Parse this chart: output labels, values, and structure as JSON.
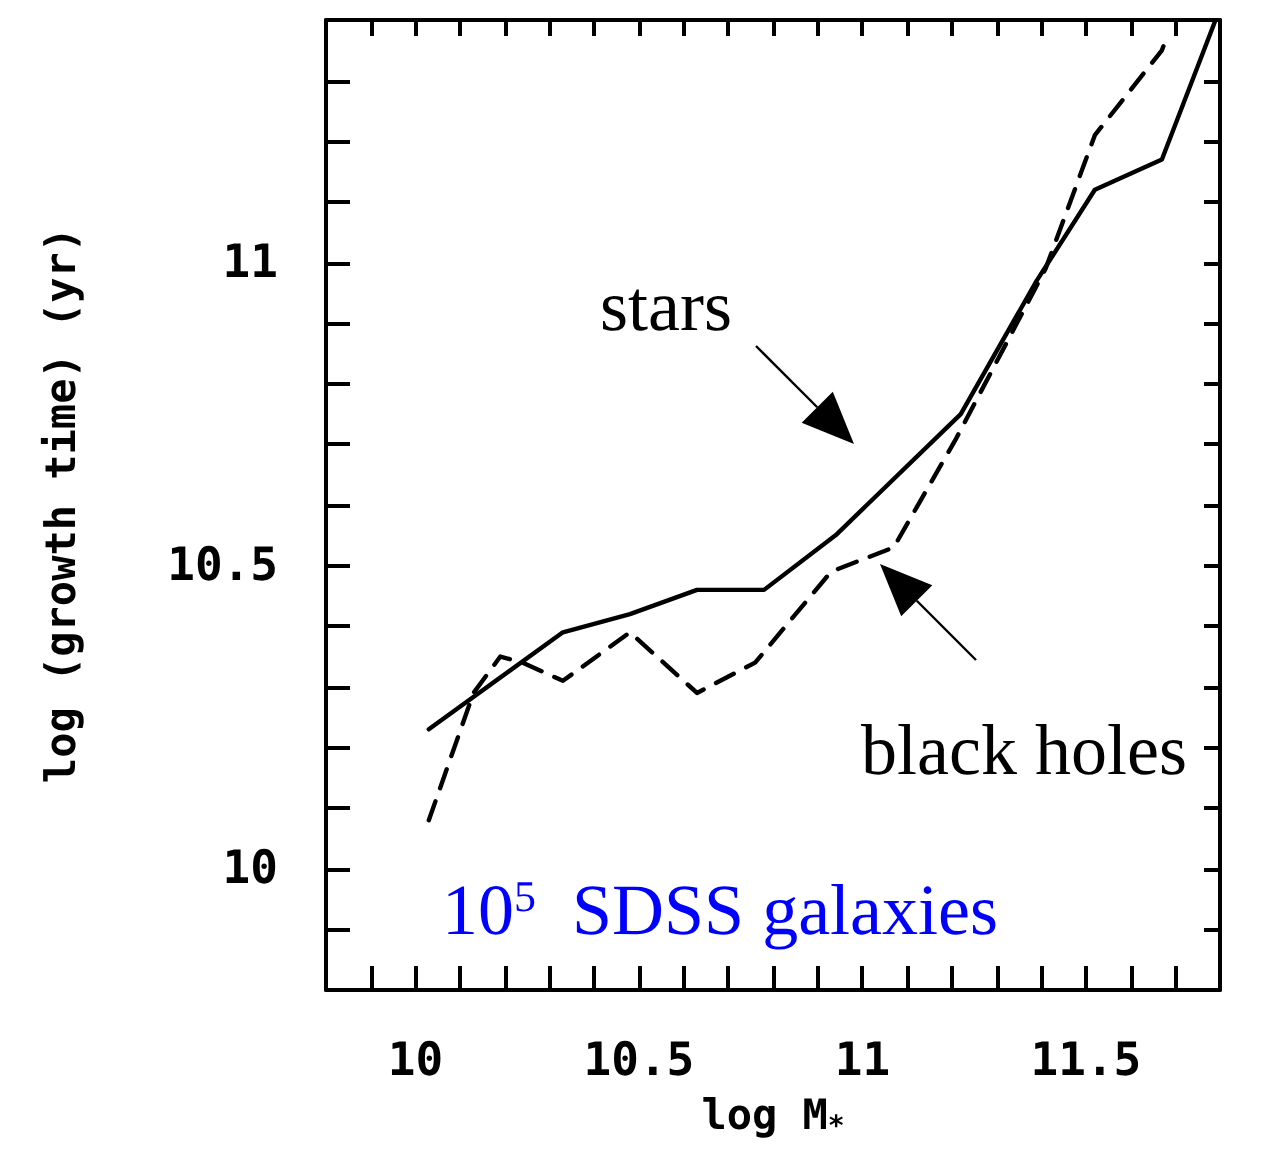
{
  "chart_data": {
    "type": "line",
    "xlabel": "log M$_{*}$",
    "ylabel": "log (growth time) (yr)",
    "xlim": [
      9.8,
      11.8
    ],
    "ylim": [
      9.8,
      11.4
    ],
    "xticks": [
      {
        "value": 9.9,
        "label": null
      },
      10,
      {
        "value": 10.1,
        "label": null
      },
      {
        "value": 10.2,
        "label": null
      },
      {
        "value": 10.3,
        "label": null
      },
      {
        "value": 10.4,
        "label": null
      },
      10.5,
      {
        "value": 10.6,
        "label": null
      },
      {
        "value": 10.7,
        "label": null
      },
      {
        "value": 10.8,
        "label": null
      },
      {
        "value": 10.9,
        "label": null
      },
      11,
      {
        "value": 11.1,
        "label": null
      },
      {
        "value": 11.2,
        "label": null
      },
      {
        "value": 11.3,
        "label": null
      },
      {
        "value": 11.4,
        "label": null
      },
      11.5,
      {
        "value": 11.6,
        "label": null
      },
      {
        "value": 11.7,
        "label": null
      }
    ],
    "yticks": [
      {
        "value": 9.9,
        "label": null
      },
      10,
      {
        "value": 10.1,
        "label": null
      },
      {
        "value": 10.2,
        "label": null
      },
      {
        "value": 10.3,
        "label": null
      },
      {
        "value": 10.4,
        "label": null
      },
      10.5,
      {
        "value": 10.6,
        "label": null
      },
      {
        "value": 10.7,
        "label": null
      },
      {
        "value": 10.8,
        "label": null
      },
      {
        "value": 10.9,
        "label": null
      },
      11,
      {
        "value": 11.1,
        "label": null
      },
      {
        "value": 11.2,
        "label": null
      },
      {
        "value": 11.3,
        "label": null
      }
    ],
    "grid": false,
    "marker": "none",
    "series": [
      {
        "color": "#000000",
        "line_style": "solid",
        "x": [
          10.03,
          10.33,
          10.48,
          10.63,
          10.78,
          10.94,
          11.01,
          11.22,
          11.39,
          11.52,
          11.67,
          11.79
        ],
        "values": [
          10.23,
          10.39,
          10.42,
          10.46,
          10.46,
          10.55,
          10.6,
          10.75,
          10.97,
          11.12,
          11.17,
          11.4
        ]
      },
      {
        "color": "#000000",
        "line_style": "dashed",
        "x": [
          10.03,
          10.13,
          10.19,
          10.24,
          10.33,
          10.48,
          10.63,
          10.76,
          10.93,
          11.07,
          11.21,
          11.41,
          11.52,
          11.67,
          11.68
        ],
        "values": [
          10.08,
          10.29,
          10.35,
          10.34,
          10.31,
          10.39,
          10.29,
          10.34,
          10.49,
          10.53,
          10.71,
          10.99,
          11.21,
          11.35,
          11.37
        ]
      }
    ],
    "annotations": [
      "stars",
      "black holes",
      "10$^{5}$  SDSS galaxies"
    ]
  }
}
